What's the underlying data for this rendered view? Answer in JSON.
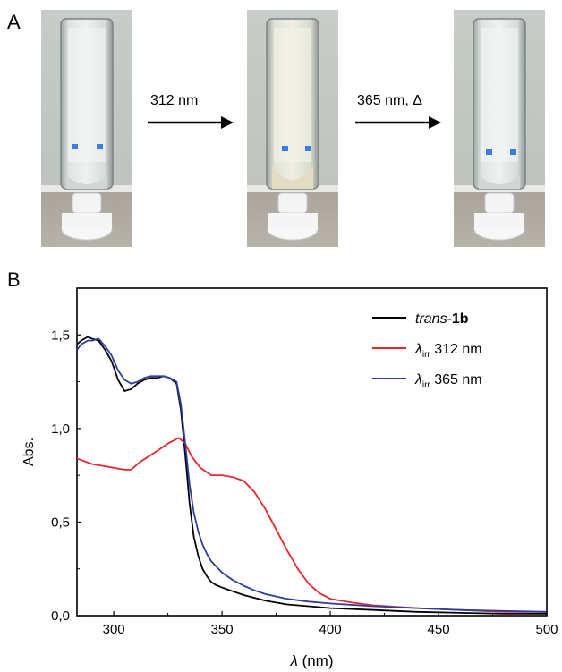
{
  "panel_a": {
    "letter": "A",
    "steps": [
      {
        "label": "312 nm"
      },
      {
        "label": "365 nm, Δ"
      }
    ]
  },
  "panel_b": {
    "letter": "B"
  },
  "colors": {
    "trans": "#000000",
    "irr312": "#e8262d",
    "irr365": "#2e3d9b"
  },
  "chart_data": {
    "type": "line",
    "xlabel_italic": "λ",
    "xlabel_rest": " (nm)",
    "ylabel": "Abs.",
    "xlim": [
      283,
      500
    ],
    "ylim": [
      0.0,
      1.75
    ],
    "xticks": [
      300,
      350,
      400,
      450,
      500
    ],
    "yticks": [
      0.0,
      0.5,
      1.0,
      1.5
    ],
    "ytick_labels": [
      "0,0",
      "0,5",
      "1,0",
      "1,5"
    ],
    "legend_position": "top-right",
    "series": [
      {
        "key": "trans",
        "name_italic": "trans",
        "name_rest": "-",
        "name_bold": "1b",
        "color": "#000000",
        "x": [
          283,
          285,
          288,
          290,
          293,
          296,
          299,
          302,
          305,
          308,
          311,
          314,
          317,
          320,
          323,
          326,
          329,
          331,
          333,
          335,
          337,
          339,
          341,
          343,
          345,
          347,
          350,
          355,
          360,
          365,
          370,
          380,
          390,
          400,
          420,
          440,
          460,
          480,
          500
        ],
        "y": [
          1.45,
          1.47,
          1.49,
          1.48,
          1.47,
          1.42,
          1.36,
          1.26,
          1.2,
          1.21,
          1.24,
          1.26,
          1.27,
          1.27,
          1.28,
          1.27,
          1.24,
          1.1,
          0.86,
          0.6,
          0.42,
          0.32,
          0.25,
          0.21,
          0.18,
          0.165,
          0.15,
          0.13,
          0.11,
          0.095,
          0.08,
          0.06,
          0.05,
          0.04,
          0.03,
          0.02,
          0.015,
          0.01,
          0.01
        ]
      },
      {
        "key": "irr312",
        "name_italic": "λ",
        "name_sub": "irr",
        "name_rest": " 312 nm",
        "color": "#e8262d",
        "x": [
          283,
          290,
          300,
          305,
          308,
          312,
          316,
          320,
          325,
          330,
          333,
          336,
          340,
          345,
          350,
          355,
          360,
          365,
          370,
          375,
          380,
          385,
          390,
          395,
          400,
          410,
          420,
          440,
          460,
          480,
          500
        ],
        "y": [
          0.84,
          0.81,
          0.79,
          0.78,
          0.78,
          0.82,
          0.85,
          0.88,
          0.92,
          0.95,
          0.92,
          0.85,
          0.79,
          0.75,
          0.75,
          0.74,
          0.72,
          0.66,
          0.57,
          0.46,
          0.35,
          0.25,
          0.17,
          0.12,
          0.09,
          0.07,
          0.055,
          0.04,
          0.03,
          0.02,
          0.02
        ]
      },
      {
        "key": "irr365",
        "name_italic": "λ",
        "name_sub": "irr",
        "name_rest": " 365 nm",
        "color": "#2e3d9b",
        "x": [
          283,
          285,
          288,
          290,
          293,
          296,
          299,
          302,
          305,
          308,
          311,
          314,
          317,
          320,
          323,
          326,
          329,
          331,
          333,
          335,
          337,
          339,
          341,
          343,
          345,
          350,
          355,
          360,
          365,
          370,
          380,
          390,
          400,
          420,
          440,
          460,
          480,
          500
        ],
        "y": [
          1.42,
          1.45,
          1.47,
          1.47,
          1.48,
          1.44,
          1.39,
          1.31,
          1.26,
          1.24,
          1.25,
          1.27,
          1.28,
          1.28,
          1.28,
          1.27,
          1.25,
          1.13,
          0.92,
          0.7,
          0.55,
          0.45,
          0.38,
          0.33,
          0.29,
          0.23,
          0.19,
          0.16,
          0.135,
          0.115,
          0.09,
          0.075,
          0.065,
          0.05,
          0.04,
          0.03,
          0.025,
          0.02
        ]
      }
    ]
  }
}
